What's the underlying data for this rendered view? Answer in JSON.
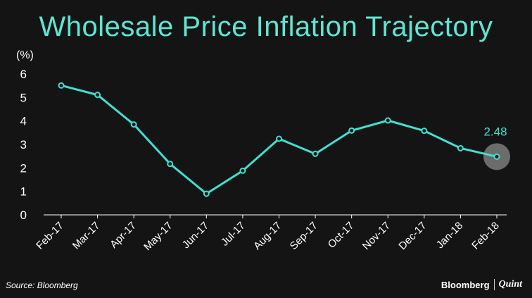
{
  "chart_data": {
    "type": "line",
    "title": "Wholesale Price Inflation Trajectory",
    "ylabel": "(%)",
    "xlabel": "",
    "categories": [
      "Feb-17",
      "Mar-17",
      "Apr-17",
      "May-17",
      "Jun-17",
      "Jul-17",
      "Aug-17",
      "Sep-17",
      "Oct-17",
      "Nov-17",
      "Dec-17",
      "Jan-18",
      "Feb-18"
    ],
    "values": [
      5.51,
      5.11,
      3.85,
      2.17,
      0.9,
      1.88,
      3.24,
      2.6,
      3.59,
      4.02,
      3.58,
      2.84,
      2.48
    ],
    "ylim": [
      0,
      6
    ],
    "yticks": [
      0,
      1,
      2,
      3,
      4,
      5,
      6
    ],
    "annotation": {
      "label": "2.48",
      "category": "Feb-18"
    },
    "grid": false,
    "colors": {
      "line": "#40e0d0",
      "title": "#5ee6d2",
      "background": "#141414",
      "text": "#ffffff",
      "highlight": "#8a8a8a"
    }
  },
  "footer": {
    "source": "Source: Bloomberg",
    "brand_primary": "Bloomberg",
    "brand_secondary": "Quint"
  }
}
